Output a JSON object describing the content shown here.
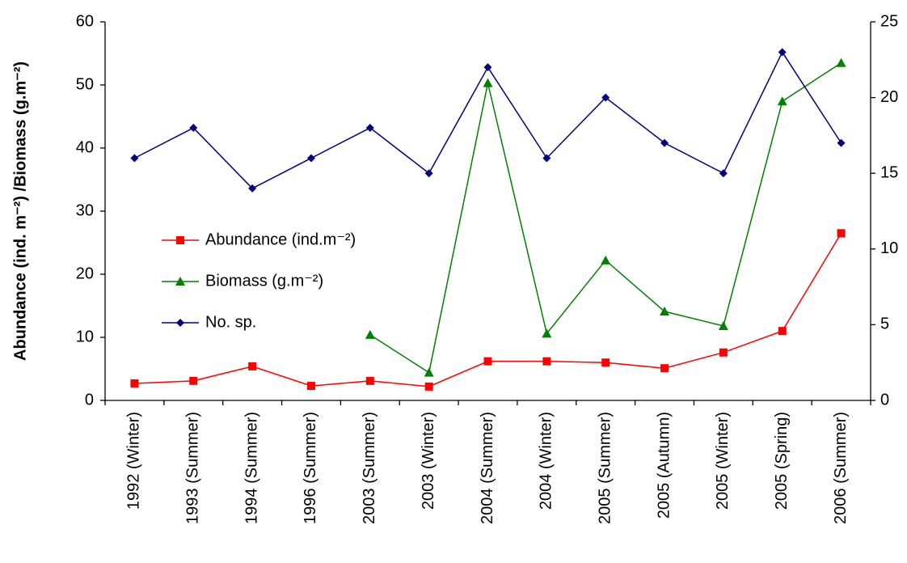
{
  "chart_data": {
    "type": "line",
    "y_label": "Abundance (ind. m⁻²) /Biomass (g.m⁻²)",
    "categories": [
      "1992 (Winter)",
      "1993 (Summer)",
      "1994 (Summer)",
      "1996 (Summer)",
      "2003 (Summer)",
      "2003 (Winter)",
      "2004 (Summer)",
      "2004 (Winter)",
      "2005 (Summer)",
      "2005 (Autumn)",
      "2005 (Winter)",
      "2005 (Spring)",
      "2006 (Summer)"
    ],
    "series": [
      {
        "name": "Abundance (ind.m⁻²)",
        "color": "#ff0000",
        "marker": "square",
        "values": [
          2.7,
          3.1,
          5.4,
          2.3,
          3.1,
          2.2,
          6.2,
          6.2,
          6.0,
          5.1,
          7.6,
          11.0,
          26.5
        ]
      },
      {
        "name": "Biomass (g.m⁻²)",
        "color": "#008000",
        "marker": "triangle",
        "values": [
          null,
          null,
          null,
          null,
          10.4,
          4.4,
          50.3,
          10.6,
          22.2,
          14.1,
          11.8,
          47.4,
          53.5
        ]
      },
      {
        "name": "No. sp.",
        "color": "#000080",
        "marker": "diamond",
        "axis": "y2",
        "values": [
          16,
          18,
          14,
          16,
          18,
          15,
          22,
          16,
          20,
          17,
          15,
          23,
          17
        ]
      }
    ],
    "ylim": [
      0,
      60
    ],
    "yticks": [
      0,
      10,
      20,
      30,
      40,
      50,
      60
    ],
    "y2lim": [
      0,
      25
    ],
    "y2ticks": [
      0,
      5,
      10,
      15,
      20,
      25
    ],
    "grid": false,
    "legend": "left"
  }
}
